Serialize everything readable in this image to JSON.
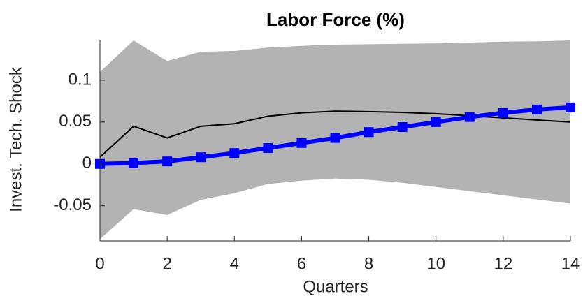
{
  "chart_data": {
    "type": "line",
    "title": "Labor Force (%)",
    "xlabel": "Quarters",
    "ylabel": "Invest. Tech. Shock",
    "x": [
      0,
      1,
      2,
      3,
      4,
      5,
      6,
      7,
      8,
      9,
      10,
      11,
      12,
      13,
      14
    ],
    "band": {
      "color": "#b3b3b3",
      "upper": [
        0.11,
        0.1475,
        0.123,
        0.134,
        0.135,
        0.139,
        0.141,
        0.1425,
        0.143,
        0.1435,
        0.144,
        0.145,
        0.146,
        0.1465,
        0.1475
      ],
      "lower": [
        -0.09,
        -0.054,
        -0.061,
        -0.043,
        -0.035,
        -0.024,
        -0.02,
        -0.0175,
        -0.019,
        -0.0225,
        -0.0275,
        -0.0325,
        -0.0375,
        -0.0425,
        -0.0475
      ]
    },
    "series": [
      {
        "color": "#000000",
        "values": [
          0.008,
          0.045,
          0.031,
          0.045,
          0.048,
          0.057,
          0.061,
          0.063,
          0.0625,
          0.0615,
          0.06,
          0.0575,
          0.055,
          0.0525,
          0.05
        ]
      },
      {
        "color": "#0000ff",
        "marker": "square",
        "values": [
          0,
          0.001,
          0.003,
          0.008,
          0.013,
          0.019,
          0.025,
          0.031,
          0.038,
          0.044,
          0.05,
          0.056,
          0.061,
          0.065,
          0.0675
        ]
      }
    ],
    "xlim": [
      0,
      14
    ],
    "xticks": [
      0,
      2,
      4,
      6,
      8,
      10,
      12,
      14
    ],
    "ylim": [
      -0.092,
      0.1475
    ],
    "yticks": [
      -0.05,
      0,
      0.05,
      0.1
    ]
  }
}
